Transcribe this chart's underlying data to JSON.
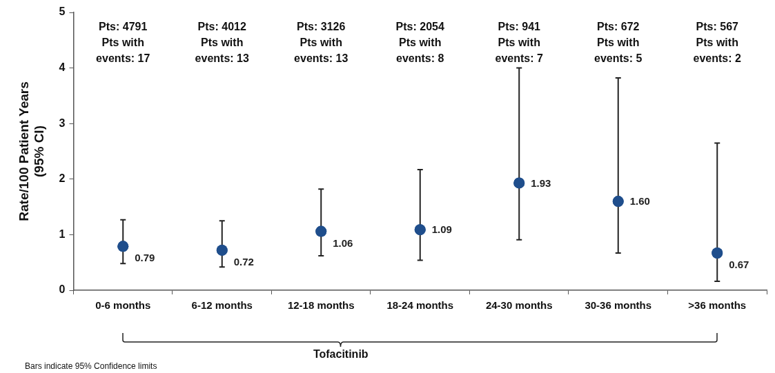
{
  "chart_data": {
    "type": "scatter",
    "ylabel": "Rate/100 Patient Years\n(95% CI)",
    "categories": [
      "0-6 months",
      "6-12 months",
      "12-18 months",
      "18-24 months",
      "24-30 months",
      "30-36 months",
      ">36 months"
    ],
    "series": [
      {
        "color": "#1f4e8c",
        "values": [
          0.79,
          0.72,
          1.06,
          1.09,
          1.93,
          1.6,
          0.67
        ],
        "value_labels": [
          "0.79",
          "0.72",
          "1.06",
          "1.09",
          "1.93",
          "1.60",
          "0.67"
        ],
        "errors": [
          [
            0.48,
            1.27
          ],
          [
            0.42,
            1.25
          ],
          [
            0.62,
            1.82
          ],
          [
            0.54,
            2.17
          ],
          [
            0.91,
            4.0
          ],
          [
            0.67,
            3.82
          ],
          [
            0.16,
            2.65
          ]
        ]
      }
    ],
    "ylim": [
      0,
      5
    ],
    "yticks": [
      0,
      1,
      2,
      3,
      4,
      5
    ],
    "grid": false,
    "legend": false,
    "marker": "circle",
    "annotations": [
      "Pts: 4791\nPts with\nevents: 17",
      "Pts: 4012\nPts with\nevents: 13",
      "Pts: 3126\nPts with\nevents: 13",
      "Pts: 2054\nPts with\nevents: 8",
      "Pts: 941\nPts with\nevents: 7",
      "Pts: 672\nPts with\nevents: 5",
      "Pts: 567\nPts with\nevents: 2",
      "Tofacitinib",
      "Bars indicate 95% Confidence limits"
    ]
  }
}
